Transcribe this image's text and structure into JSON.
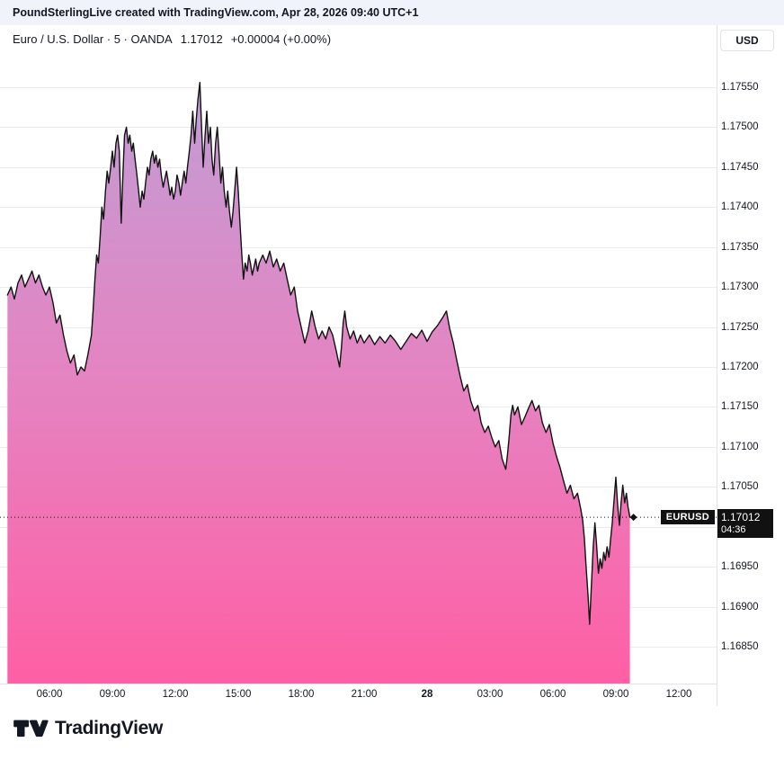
{
  "top_bar": {
    "text": "PoundSterlingLive created with TradingView.com, Apr 28, 2026 09:40 UTC+1"
  },
  "legend": {
    "title": "Euro / U.S. Dollar · 5 · OANDA",
    "price": "1.17012",
    "change": "+0.00004 (+0.00%)"
  },
  "symbol_badge": "EURUSD",
  "price_axis": {
    "currency_button": "USD",
    "current_price_label": "1.17012",
    "countdown": "04:36"
  },
  "logo": {
    "text": "TradingView"
  },
  "colors": {
    "topbar_bg": "#f0f3fa",
    "text": "#131722",
    "grid": "#e9ebf0",
    "axis_border": "#e0e3eb",
    "line": "#111111",
    "badge_bg": "#111111",
    "fill_top": "#c29dd5",
    "fill_mid": "#e583c1",
    "fill_bottom": "#ff5fa4"
  },
  "chart_data": {
    "type": "area",
    "title": "Euro / U.S. Dollar · 5 · OANDA (EURUSD)",
    "ylabel": "USD",
    "x_unit": "hour of day; t<24 = Apr 27, t>=24 = Apr 28 (t-24 o'clock); data ends 09:40 Apr 28",
    "ylim": [
      1.16804,
      1.17628
    ],
    "grid": true,
    "current_price": 1.17012,
    "change": "+0.00004 (+0.00%)",
    "price_ticks": [
      1.1755,
      1.175,
      1.1745,
      1.174,
      1.1735,
      1.173,
      1.1725,
      1.172,
      1.1715,
      1.171,
      1.1705,
      1.17,
      1.1695,
      1.169,
      1.1685
    ],
    "time_ticks": [
      {
        "t": 6,
        "label": "06:00"
      },
      {
        "t": 9,
        "label": "09:00"
      },
      {
        "t": 12,
        "label": "12:00"
      },
      {
        "t": 15,
        "label": "15:00"
      },
      {
        "t": 18,
        "label": "18:00"
      },
      {
        "t": 21,
        "label": "21:00"
      },
      {
        "t": 24,
        "label": "28",
        "emphasis": true
      },
      {
        "t": 27,
        "label": "03:00"
      },
      {
        "t": 30,
        "label": "06:00"
      },
      {
        "t": 33,
        "label": "09:00"
      },
      {
        "t": 36,
        "label": "12:00"
      }
    ],
    "series": [
      {
        "name": "EURUSD",
        "points": [
          [
            4,
            1.1729
          ],
          [
            4.17,
            1.173
          ],
          [
            4.33,
            1.17285
          ],
          [
            4.5,
            1.17305
          ],
          [
            4.67,
            1.17315
          ],
          [
            4.83,
            1.173
          ],
          [
            5,
            1.1731
          ],
          [
            5.17,
            1.1732
          ],
          [
            5.33,
            1.17305
          ],
          [
            5.5,
            1.17315
          ],
          [
            5.67,
            1.173
          ],
          [
            5.83,
            1.1729
          ],
          [
            6,
            1.173
          ],
          [
            6.17,
            1.1728
          ],
          [
            6.33,
            1.17255
          ],
          [
            6.5,
            1.17265
          ],
          [
            6.67,
            1.1724
          ],
          [
            6.83,
            1.1722
          ],
          [
            7,
            1.17205
          ],
          [
            7.17,
            1.17215
          ],
          [
            7.33,
            1.1719
          ],
          [
            7.5,
            1.172
          ],
          [
            7.67,
            1.17195
          ],
          [
            7.83,
            1.17215
          ],
          [
            8,
            1.1724
          ],
          [
            8.08,
            1.1727
          ],
          [
            8.17,
            1.1731
          ],
          [
            8.25,
            1.1734
          ],
          [
            8.33,
            1.1733
          ],
          [
            8.42,
            1.17365
          ],
          [
            8.5,
            1.174
          ],
          [
            8.58,
            1.17385
          ],
          [
            8.67,
            1.1742
          ],
          [
            8.75,
            1.17445
          ],
          [
            8.83,
            1.1743
          ],
          [
            8.92,
            1.1745
          ],
          [
            9,
            1.1747
          ],
          [
            9.08,
            1.1745
          ],
          [
            9.17,
            1.1748
          ],
          [
            9.25,
            1.1749
          ],
          [
            9.33,
            1.1747
          ],
          [
            9.42,
            1.1738
          ],
          [
            9.5,
            1.1744
          ],
          [
            9.58,
            1.1749
          ],
          [
            9.67,
            1.175
          ],
          [
            9.75,
            1.1748
          ],
          [
            9.83,
            1.1749
          ],
          [
            9.92,
            1.1747
          ],
          [
            10,
            1.1748
          ],
          [
            10.08,
            1.1746
          ],
          [
            10.17,
            1.1744
          ],
          [
            10.25,
            1.1742
          ],
          [
            10.33,
            1.174
          ],
          [
            10.42,
            1.1742
          ],
          [
            10.5,
            1.1741
          ],
          [
            10.58,
            1.1743
          ],
          [
            10.67,
            1.1745
          ],
          [
            10.75,
            1.1744
          ],
          [
            10.83,
            1.1746
          ],
          [
            10.92,
            1.1747
          ],
          [
            11,
            1.17455
          ],
          [
            11.08,
            1.17465
          ],
          [
            11.17,
            1.1745
          ],
          [
            11.25,
            1.1746
          ],
          [
            11.33,
            1.1744
          ],
          [
            11.42,
            1.17425
          ],
          [
            11.5,
            1.17435
          ],
          [
            11.58,
            1.17445
          ],
          [
            11.67,
            1.1743
          ],
          [
            11.75,
            1.17415
          ],
          [
            11.83,
            1.17425
          ],
          [
            11.92,
            1.1741
          ],
          [
            12,
            1.1742
          ],
          [
            12.08,
            1.1744
          ],
          [
            12.17,
            1.1743
          ],
          [
            12.25,
            1.17415
          ],
          [
            12.33,
            1.1743
          ],
          [
            12.42,
            1.17445
          ],
          [
            12.5,
            1.1743
          ],
          [
            12.58,
            1.1745
          ],
          [
            12.67,
            1.1747
          ],
          [
            12.75,
            1.1749
          ],
          [
            12.83,
            1.1752
          ],
          [
            12.92,
            1.1748
          ],
          [
            13,
            1.1751
          ],
          [
            13.08,
            1.17535
          ],
          [
            13.17,
            1.17556
          ],
          [
            13.25,
            1.175
          ],
          [
            13.33,
            1.1745
          ],
          [
            13.42,
            1.1749
          ],
          [
            13.5,
            1.1752
          ],
          [
            13.58,
            1.1748
          ],
          [
            13.67,
            1.175
          ],
          [
            13.75,
            1.1746
          ],
          [
            13.83,
            1.1744
          ],
          [
            13.92,
            1.1748
          ],
          [
            14,
            1.175
          ],
          [
            14.08,
            1.1747
          ],
          [
            14.17,
            1.1743
          ],
          [
            14.25,
            1.1745
          ],
          [
            14.33,
            1.1742
          ],
          [
            14.42,
            1.174
          ],
          [
            14.5,
            1.1742
          ],
          [
            14.58,
            1.17395
          ],
          [
            14.67,
            1.17375
          ],
          [
            14.75,
            1.17395
          ],
          [
            14.83,
            1.1742
          ],
          [
            14.92,
            1.1745
          ],
          [
            15,
            1.1742
          ],
          [
            15.08,
            1.1738
          ],
          [
            15.17,
            1.1734
          ],
          [
            15.25,
            1.1731
          ],
          [
            15.33,
            1.1733
          ],
          [
            15.42,
            1.1732
          ],
          [
            15.5,
            1.1734
          ],
          [
            15.58,
            1.1733
          ],
          [
            15.67,
            1.17315
          ],
          [
            15.75,
            1.17325
          ],
          [
            15.83,
            1.17335
          ],
          [
            15.92,
            1.1732
          ],
          [
            16,
            1.1733
          ],
          [
            16.17,
            1.1734
          ],
          [
            16.33,
            1.1733
          ],
          [
            16.5,
            1.17345
          ],
          [
            16.67,
            1.17325
          ],
          [
            16.83,
            1.17335
          ],
          [
            17,
            1.1732
          ],
          [
            17.17,
            1.1733
          ],
          [
            17.33,
            1.1731
          ],
          [
            17.5,
            1.1729
          ],
          [
            17.67,
            1.173
          ],
          [
            17.83,
            1.1727
          ],
          [
            18,
            1.1725
          ],
          [
            18.17,
            1.1723
          ],
          [
            18.33,
            1.17245
          ],
          [
            18.5,
            1.1727
          ],
          [
            18.67,
            1.1725
          ],
          [
            18.83,
            1.17235
          ],
          [
            19,
            1.17245
          ],
          [
            19.17,
            1.17235
          ],
          [
            19.33,
            1.1725
          ],
          [
            19.5,
            1.1724
          ],
          [
            19.67,
            1.1722
          ],
          [
            19.83,
            1.172
          ],
          [
            19.92,
            1.17225
          ],
          [
            20,
            1.17255
          ],
          [
            20.08,
            1.1727
          ],
          [
            20.17,
            1.1725
          ],
          [
            20.33,
            1.17235
          ],
          [
            20.5,
            1.17245
          ],
          [
            20.67,
            1.1723
          ],
          [
            20.83,
            1.1724
          ],
          [
            21,
            1.1723
          ],
          [
            21.25,
            1.1724
          ],
          [
            21.5,
            1.17228
          ],
          [
            21.75,
            1.17238
          ],
          [
            22,
            1.1723
          ],
          [
            22.25,
            1.1724
          ],
          [
            22.5,
            1.17232
          ],
          [
            22.75,
            1.17222
          ],
          [
            23,
            1.17232
          ],
          [
            23.25,
            1.17242
          ],
          [
            23.5,
            1.17236
          ],
          [
            23.75,
            1.17246
          ],
          [
            24,
            1.17232
          ],
          [
            24.25,
            1.17244
          ],
          [
            24.5,
            1.17252
          ],
          [
            24.75,
            1.17262
          ],
          [
            24.92,
            1.1727
          ],
          [
            25.08,
            1.17248
          ],
          [
            25.25,
            1.1723
          ],
          [
            25.42,
            1.17208
          ],
          [
            25.58,
            1.17188
          ],
          [
            25.75,
            1.1717
          ],
          [
            25.92,
            1.17178
          ],
          [
            26.08,
            1.17158
          ],
          [
            26.25,
            1.17145
          ],
          [
            26.42,
            1.17152
          ],
          [
            26.58,
            1.1713
          ],
          [
            26.75,
            1.17118
          ],
          [
            26.92,
            1.17126
          ],
          [
            27.08,
            1.17112
          ],
          [
            27.25,
            1.171
          ],
          [
            27.42,
            1.17108
          ],
          [
            27.58,
            1.17085
          ],
          [
            27.75,
            1.17072
          ],
          [
            27.83,
            1.1709
          ],
          [
            27.92,
            1.17115
          ],
          [
            28,
            1.1714
          ],
          [
            28.08,
            1.17152
          ],
          [
            28.17,
            1.1714
          ],
          [
            28.33,
            1.1715
          ],
          [
            28.5,
            1.17128
          ],
          [
            28.67,
            1.17138
          ],
          [
            28.83,
            1.17148
          ],
          [
            29,
            1.17158
          ],
          [
            29.17,
            1.17145
          ],
          [
            29.33,
            1.17152
          ],
          [
            29.5,
            1.1713
          ],
          [
            29.67,
            1.17118
          ],
          [
            29.83,
            1.17128
          ],
          [
            30,
            1.17105
          ],
          [
            30.17,
            1.17088
          ],
          [
            30.33,
            1.17075
          ],
          [
            30.5,
            1.17058
          ],
          [
            30.67,
            1.17042
          ],
          [
            30.83,
            1.17052
          ],
          [
            31,
            1.17035
          ],
          [
            31.17,
            1.17042
          ],
          [
            31.33,
            1.17022
          ],
          [
            31.42,
            1.17008
          ],
          [
            31.5,
            1.16985
          ],
          [
            31.58,
            1.1695
          ],
          [
            31.67,
            1.16915
          ],
          [
            31.75,
            1.16878
          ],
          [
            31.83,
            1.16925
          ],
          [
            31.92,
            1.16975
          ],
          [
            32,
            1.17005
          ],
          [
            32.08,
            1.16978
          ],
          [
            32.17,
            1.16942
          ],
          [
            32.25,
            1.1696
          ],
          [
            32.33,
            1.16948
          ],
          [
            32.42,
            1.16968
          ],
          [
            32.5,
            1.16958
          ],
          [
            32.58,
            1.16975
          ],
          [
            32.67,
            1.16962
          ],
          [
            32.75,
            1.16985
          ],
          [
            32.83,
            1.17005
          ],
          [
            32.92,
            1.17035
          ],
          [
            33,
            1.17062
          ],
          [
            33.08,
            1.17028
          ],
          [
            33.17,
            1.17002
          ],
          [
            33.25,
            1.1703
          ],
          [
            33.33,
            1.17052
          ],
          [
            33.42,
            1.1703
          ],
          [
            33.5,
            1.17042
          ],
          [
            33.58,
            1.17025
          ],
          [
            33.67,
            1.17012
          ]
        ]
      }
    ]
  }
}
